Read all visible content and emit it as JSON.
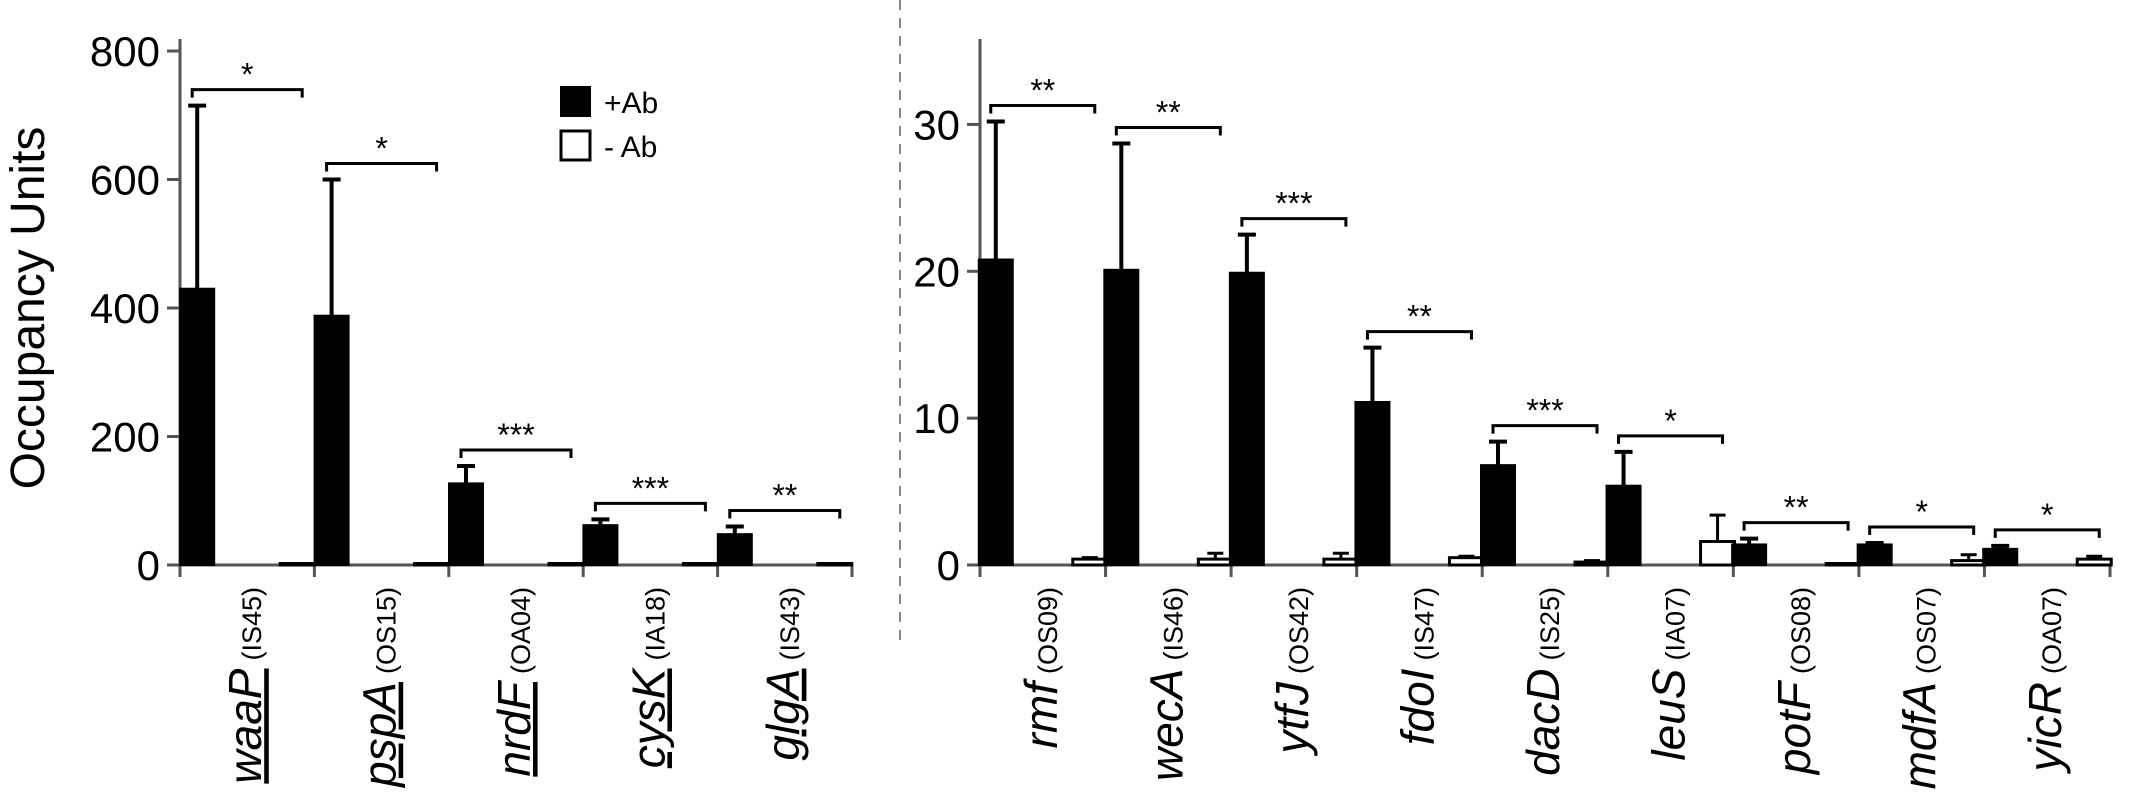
{
  "colors": {
    "plus_ab": "#000000",
    "minus_ab": "#ffffff",
    "axis": "#555555",
    "divider": "#888888"
  },
  "chart_data": [
    {
      "type": "bar",
      "ylabel": "Occupancy Units",
      "ylim": [
        0,
        800
      ],
      "yticks": [
        0,
        200,
        400,
        600,
        800
      ],
      "legend": {
        "placement": "top-right",
        "entries": [
          "+Ab",
          "- Ab"
        ]
      },
      "categories": [
        {
          "gene": "waaP",
          "code": "(IS45)",
          "underlined": true
        },
        {
          "gene": "pspA",
          "code": "(OS15)",
          "underlined": true
        },
        {
          "gene": "nrdF",
          "code": "(OA04)",
          "underlined": true
        },
        {
          "gene": "cysK",
          "code": "(IA18)",
          "underlined": true
        },
        {
          "gene": "glgA",
          "code": "(IS43)",
          "underlined": true
        }
      ],
      "series": [
        {
          "name": "+Ab",
          "values": [
            430,
            388,
            127,
            62,
            48
          ],
          "errors": [
            285,
            212,
            27,
            9,
            12
          ]
        },
        {
          "name": "- Ab",
          "values": [
            1,
            1,
            1,
            1,
            1
          ],
          "errors": [
            0,
            0,
            0,
            0,
            0
          ]
        }
      ],
      "significance": [
        "*",
        "*",
        "***",
        "***",
        "**"
      ]
    },
    {
      "type": "bar",
      "ylim": [
        0,
        35
      ],
      "yticks": [
        0,
        10,
        20,
        30
      ],
      "categories": [
        {
          "gene": "rmf",
          "code": "(OS09)",
          "underlined": false
        },
        {
          "gene": "wecA",
          "code": "(IS46)",
          "underlined": false
        },
        {
          "gene": "ytfJ",
          "code": "(OS42)",
          "underlined": false
        },
        {
          "gene": "fdoI",
          "code": "(IS47)",
          "underlined": false
        },
        {
          "gene": "dacD",
          "code": "(IS25)",
          "underlined": false
        },
        {
          "gene": "leuS",
          "code": "(IA07)",
          "underlined": false
        },
        {
          "gene": "potF",
          "code": "(OS08)",
          "underlined": false
        },
        {
          "gene": "mdfA",
          "code": "(OS07)",
          "underlined": false
        },
        {
          "gene": "yicR",
          "code": "(OA07)",
          "underlined": false
        }
      ],
      "series": [
        {
          "name": "+Ab",
          "values": [
            20.8,
            20.1,
            19.9,
            11.1,
            6.8,
            5.4,
            1.4,
            1.4,
            1.1
          ],
          "errors": [
            9.4,
            8.6,
            2.6,
            3.7,
            1.6,
            2.3,
            0.4,
            0.1,
            0.2
          ]
        },
        {
          "name": "- Ab",
          "values": [
            0.4,
            0.4,
            0.4,
            0.5,
            0.2,
            1.6,
            0.05,
            0.3,
            0.4
          ],
          "errors": [
            0.1,
            0.4,
            0.4,
            0.1,
            0.1,
            1.8,
            0,
            0.4,
            0.2
          ]
        }
      ],
      "significance": [
        "**",
        "**",
        "***",
        "**",
        "***",
        "*",
        "**",
        "*",
        "*"
      ]
    }
  ]
}
